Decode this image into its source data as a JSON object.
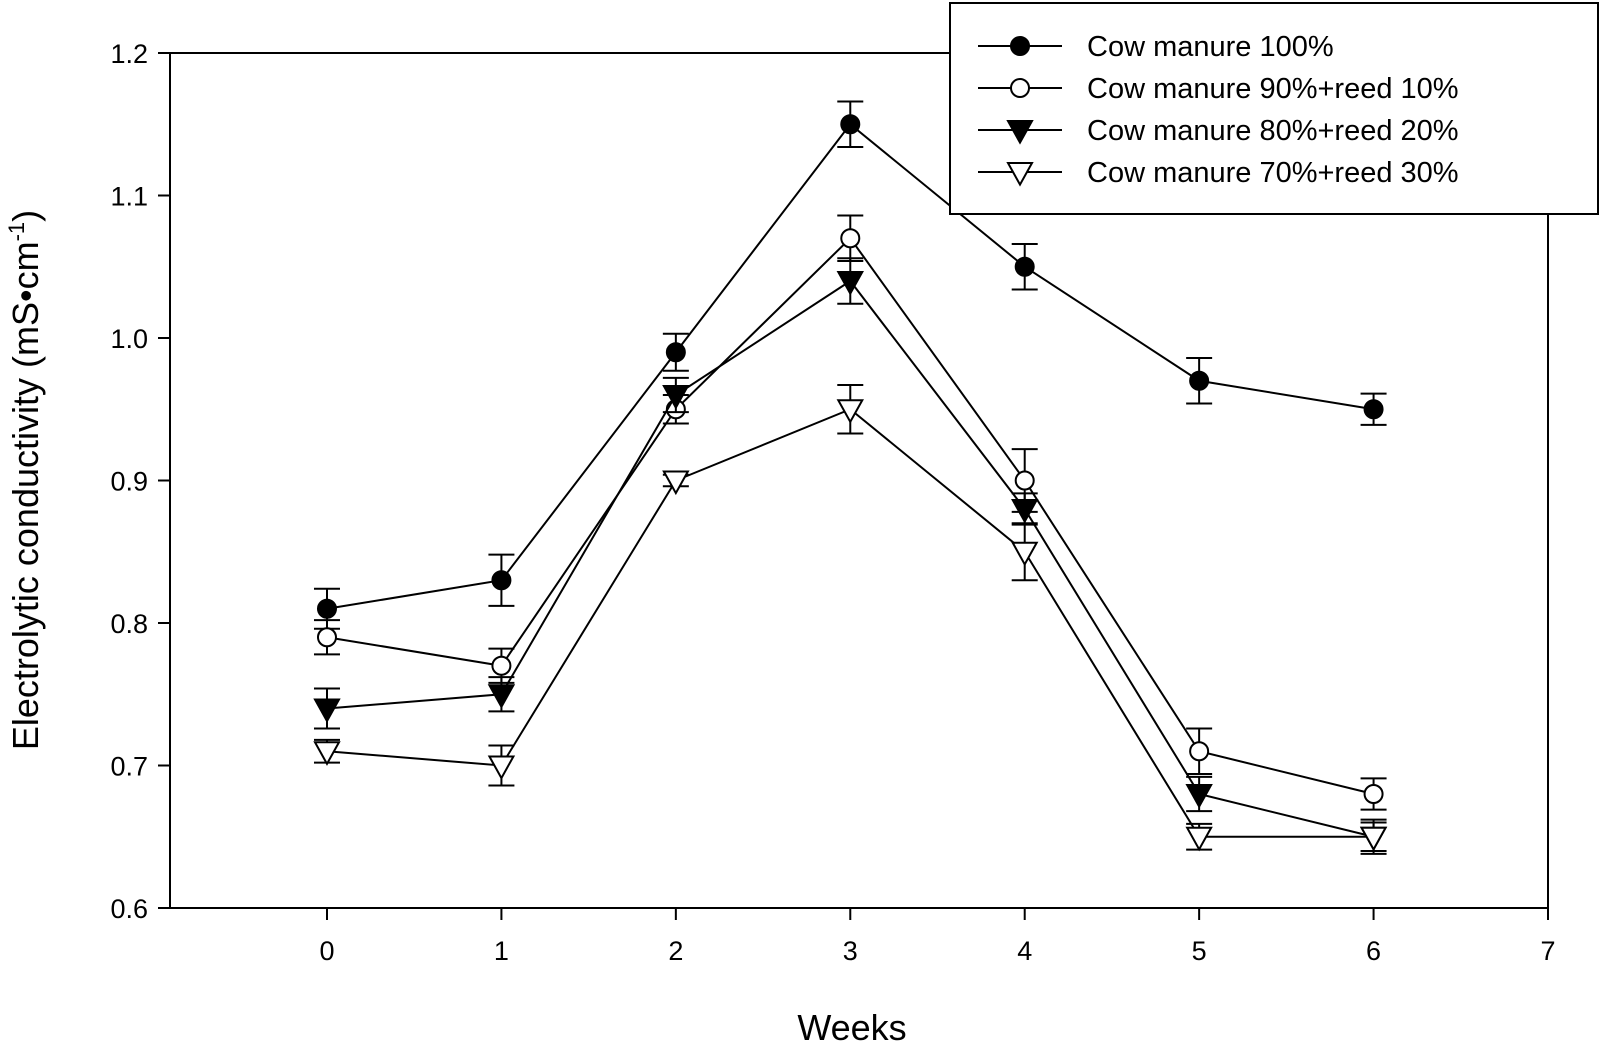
{
  "chart_data": {
    "type": "line",
    "xlabel": "Weeks",
    "ylabel": "Electrolytic conductivity (mS•cm",
    "ylabel_superscript": "-1",
    "ylabel_close": ")",
    "xlim": [
      -0.9,
      7
    ],
    "ylim": [
      0.6,
      1.2
    ],
    "x_ticks": [
      0,
      1,
      2,
      3,
      4,
      5,
      6,
      7
    ],
    "y_ticks": [
      0.6,
      0.7,
      0.8,
      0.9,
      1.0,
      1.1,
      1.2
    ],
    "y_tick_labels": [
      "0.6",
      "0.7",
      "0.8",
      "0.9",
      "1.0",
      "1.1",
      "1.2"
    ],
    "x": [
      0,
      1,
      2,
      3,
      4,
      5,
      6
    ],
    "legend_position": "top-right",
    "series": [
      {
        "name": "Cow manure 100%",
        "marker": "filled-circle",
        "values": [
          0.81,
          0.83,
          0.99,
          1.15,
          1.05,
          0.97,
          0.95
        ],
        "errors": [
          0.014,
          0.018,
          0.013,
          0.016,
          0.016,
          0.016,
          0.011
        ]
      },
      {
        "name": "Cow manure 90%+reed 10%",
        "marker": "open-circle",
        "values": [
          0.79,
          0.77,
          0.95,
          1.07,
          0.9,
          0.71,
          0.68
        ],
        "errors": [
          0.012,
          0.012,
          0.01,
          0.016,
          0.022,
          0.016,
          0.011
        ]
      },
      {
        "name": "Cow manure 80%+reed 20%",
        "marker": "filled-triangle-down",
        "values": [
          0.74,
          0.75,
          0.96,
          1.04,
          0.88,
          0.68,
          0.65
        ],
        "errors": [
          0.014,
          0.012,
          0.012,
          0.016,
          0.011,
          0.012,
          0.012
        ]
      },
      {
        "name": "Cow manure 70%+reed 30%",
        "marker": "open-triangle-down",
        "values": [
          0.71,
          0.7,
          0.9,
          0.95,
          0.85,
          0.65,
          0.65
        ],
        "errors": [
          0.008,
          0.014,
          0.004,
          0.017,
          0.02,
          0.009,
          0.01
        ]
      }
    ]
  }
}
